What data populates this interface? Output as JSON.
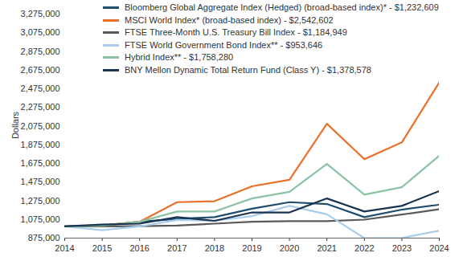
{
  "chart_data": {
    "type": "line",
    "y_label": "Dollars",
    "legend": "top-left",
    "x": [
      2014,
      2015,
      2016,
      2017,
      2018,
      2019,
      2020,
      2021,
      2022,
      2023,
      2024
    ],
    "xlim": [
      2014,
      2024
    ],
    "xticks": [
      2014,
      2015,
      2016,
      2017,
      2018,
      2019,
      2020,
      2021,
      2022,
      2023,
      2024
    ],
    "ylim": [
      875000,
      3275000
    ],
    "yticks": [
      {
        "value": 875000,
        "label": "875,000"
      },
      {
        "value": 1075000,
        "label": "1,075,000"
      },
      {
        "value": 1275000,
        "label": "1,275,000"
      },
      {
        "value": 1475000,
        "label": "1,475,000"
      },
      {
        "value": 1675000,
        "label": "1,675,000"
      },
      {
        "value": 1875000,
        "label": "1,875,000"
      },
      {
        "value": 2075000,
        "label": "2,075,000"
      },
      {
        "value": 2275000,
        "label": "2,275,000"
      },
      {
        "value": 2475000,
        "label": "2,475,000"
      },
      {
        "value": 2675000,
        "label": "2,675,000"
      },
      {
        "value": 2875000,
        "label": "2,875,000"
      },
      {
        "value": 3075000,
        "label": "3,075,000"
      },
      {
        "value": 3275000,
        "label": "3,275,000"
      }
    ],
    "series": [
      {
        "name": "Bloomberg Global Aggregate Index (Hedged) (broad-based index)* - $1,232,609",
        "color": "#1f4e6e",
        "values": [
          1000000,
          1010000,
          1050000,
          1080000,
          1100000,
          1190000,
          1260000,
          1240000,
          1100000,
          1180000,
          1232609
        ]
      },
      {
        "name": "MSCI World Index* (broad-based index) - $2,542,602",
        "color": "#e8702a",
        "values": [
          1000000,
          1010000,
          1050000,
          1260000,
          1270000,
          1430000,
          1500000,
          2100000,
          1720000,
          1900000,
          2542602
        ]
      },
      {
        "name": "FTSE Three-Month U.S. Treasury Bill Index - $1,184,949",
        "color": "#595959",
        "values": [
          1000000,
          1000000,
          1003000,
          1010000,
          1030000,
          1050000,
          1056000,
          1057000,
          1073000,
          1127000,
          1184949
        ]
      },
      {
        "name": "FTSE World Government Bond Index** - $953,646",
        "color": "#a9cdea",
        "values": [
          1000000,
          960000,
          1000000,
          1070000,
          1060000,
          1110000,
          1220000,
          1130000,
          875000,
          877000,
          953646
        ]
      },
      {
        "name": "Hybrid Index** - $1,758,280",
        "color": "#8cc3a4",
        "values": [
          1000000,
          1010000,
          1050000,
          1160000,
          1160000,
          1300000,
          1370000,
          1670000,
          1340000,
          1420000,
          1758280
        ]
      },
      {
        "name": "BNY Mellon Dynamic Total Return Fund (Class Y) - $1,378,578",
        "color": "#1a3350",
        "values": [
          1000000,
          1020000,
          1030000,
          1100000,
          1060000,
          1150000,
          1150000,
          1300000,
          1160000,
          1220000,
          1378578
        ]
      }
    ]
  }
}
